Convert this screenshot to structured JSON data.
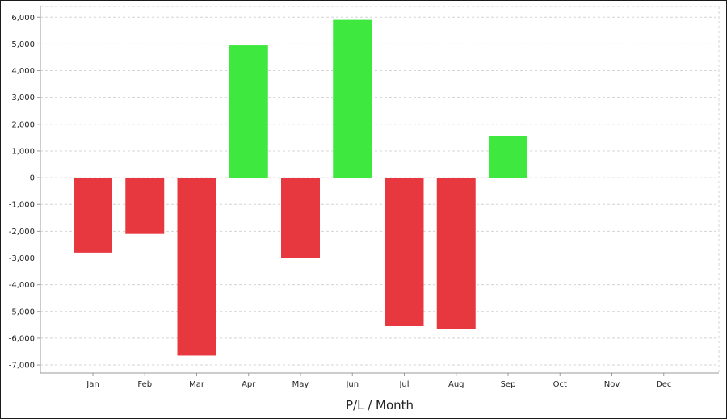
{
  "chart_data": {
    "type": "bar",
    "title": "",
    "xlabel": "P/L / Month",
    "ylabel": "",
    "categories": [
      "Jan",
      "Feb",
      "Mar",
      "Apr",
      "May",
      "Jun",
      "Jul",
      "Aug",
      "Sep",
      "Oct",
      "Nov",
      "Dec"
    ],
    "values": [
      -2800,
      -2100,
      -6650,
      4950,
      -3000,
      5900,
      -5550,
      -5650,
      1550,
      null,
      null,
      null
    ],
    "ylim": [
      -7300,
      6400
    ],
    "yticks": [
      6000,
      5000,
      4000,
      3000,
      2000,
      1000,
      0,
      -1000,
      -2000,
      -3000,
      -4000,
      -5000,
      -6000,
      -7000
    ],
    "ytick_labels": [
      "6,000",
      "5,000",
      "4,000",
      "3,000",
      "2,000",
      "1,000",
      "0",
      "-1,000",
      "-2,000",
      "-3,000",
      "-4,000",
      "-5,000",
      "-6,000",
      "-7,000"
    ],
    "grid": true,
    "legend": "none",
    "colors": {
      "positive": "#3fe83f",
      "negative": "#e8383f",
      "grid": "#d4d4d4",
      "axis": "#9a9a9a"
    }
  }
}
